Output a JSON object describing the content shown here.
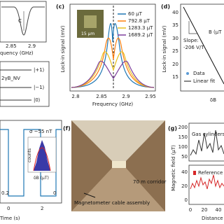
{
  "panels": {
    "a": {
      "peak_label": "C",
      "xticks": [
        "2.85",
        "2.9"
      ],
      "xlabel": "quency (GHz)",
      "levels": [
        "|+1⟩",
        "2γB_NV",
        "|−1⟩",
        "|0⟩"
      ]
    },
    "c": {
      "label": "(c)",
      "ylabel": "Lock-in signal (mV)",
      "xlabel": "Frequency (GHz)",
      "xticks": [
        "2.8",
        "2.85",
        "2.9",
        "2.95"
      ],
      "inset_scale": "15 µm",
      "legend": [
        "60 µT",
        "792.8 µT",
        "1283.3 µT",
        "1689.2 µT"
      ]
    },
    "d": {
      "label": "(d)",
      "ylabel": "Lock-in signal (mV)",
      "yticks": [
        "40",
        "35",
        "30",
        "25",
        "20",
        "15"
      ],
      "slope_title": "Slope:",
      "slope": "-206 V/T",
      "axis_note": "B (µT",
      "legend": [
        "Data",
        "Linear fit"
      ],
      "xlabel": "δB"
    },
    "e": {
      "sigma": "σ ~55 nT",
      "counts": "counts",
      "hist_xlabel": "δB (µT)",
      "ticks": [
        "0.2",
        "0",
        "0",
        "2"
      ],
      "xlabel": "Time (s)"
    },
    "f": {
      "label": "(f)",
      "corridor": "70 m corridor",
      "cable": "Magnetometer cable assembly"
    },
    "g": {
      "label": "(g)",
      "ylabel": "Magnetic field (µT)",
      "yticks": [
        "200",
        "150",
        "100",
        "50",
        "40",
        "20",
        "0"
      ],
      "gas": "Gas cylinders",
      "reference": "Reference",
      "xticks": [
        "0",
        "20",
        "40"
      ],
      "xlabel": "Distance"
    }
  }
}
